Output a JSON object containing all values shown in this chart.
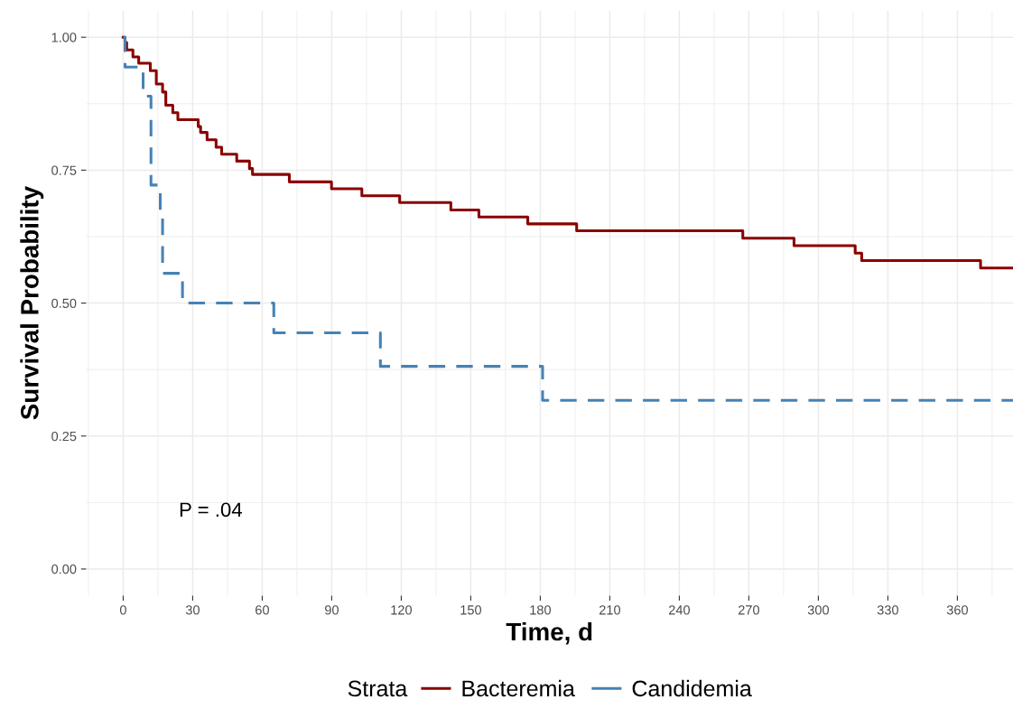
{
  "chart_data": {
    "type": "step",
    "xlabel": "Time, d",
    "ylabel": "Survival Probability",
    "legend_title": "Strata",
    "legend": "bottom",
    "grid": true,
    "marker": "none",
    "xlim": [
      -16,
      384
    ],
    "ylim": [
      -0.05,
      1.05
    ],
    "xticks": [
      0,
      30,
      60,
      90,
      120,
      150,
      180,
      210,
      240,
      270,
      300,
      330,
      360
    ],
    "yticks": [
      {
        "value": 0,
        "label": "0.00"
      },
      {
        "value": 0.25,
        "label": "0.25"
      },
      {
        "value": 0.5,
        "label": "0.50"
      },
      {
        "value": 0.75,
        "label": "0.75"
      },
      {
        "value": 1,
        "label": "1.00"
      }
    ],
    "annotations": [
      "P = .04"
    ],
    "series": [
      {
        "name": "Bacteremia",
        "color": "#8b0000",
        "line_style": "solid",
        "x": [
          0,
          0.8,
          1.5,
          4.2,
          6.7,
          11.7,
          14.3,
          17,
          18.4,
          21.4,
          23.6,
          32.4,
          33.4,
          36.2,
          40.1,
          42.5,
          49,
          54.5,
          55.8,
          71.7,
          89.9,
          103,
          119.3,
          141.4,
          153.5,
          174.6,
          195.7,
          267.4,
          289.5,
          315.9,
          318.7,
          370,
          384
        ],
        "values": [
          1.0,
          0.99,
          0.976,
          0.963,
          0.951,
          0.937,
          0.912,
          0.897,
          0.872,
          0.858,
          0.845,
          0.832,
          0.821,
          0.807,
          0.793,
          0.78,
          0.767,
          0.753,
          0.742,
          0.728,
          0.715,
          0.702,
          0.689,
          0.675,
          0.662,
          0.649,
          0.636,
          0.622,
          0.608,
          0.594,
          0.58,
          0.566,
          0.566
        ]
      },
      {
        "name": "Candidemia",
        "color": "#4682b4",
        "line_style": "dashed",
        "x": [
          0,
          0.8,
          8.6,
          12,
          16,
          17,
          25.6,
          65,
          111,
          181,
          384
        ],
        "values": [
          1.0,
          0.944,
          0.889,
          0.722,
          0.667,
          0.556,
          0.5,
          0.444,
          0.381,
          0.317,
          0.317
        ]
      }
    ]
  }
}
